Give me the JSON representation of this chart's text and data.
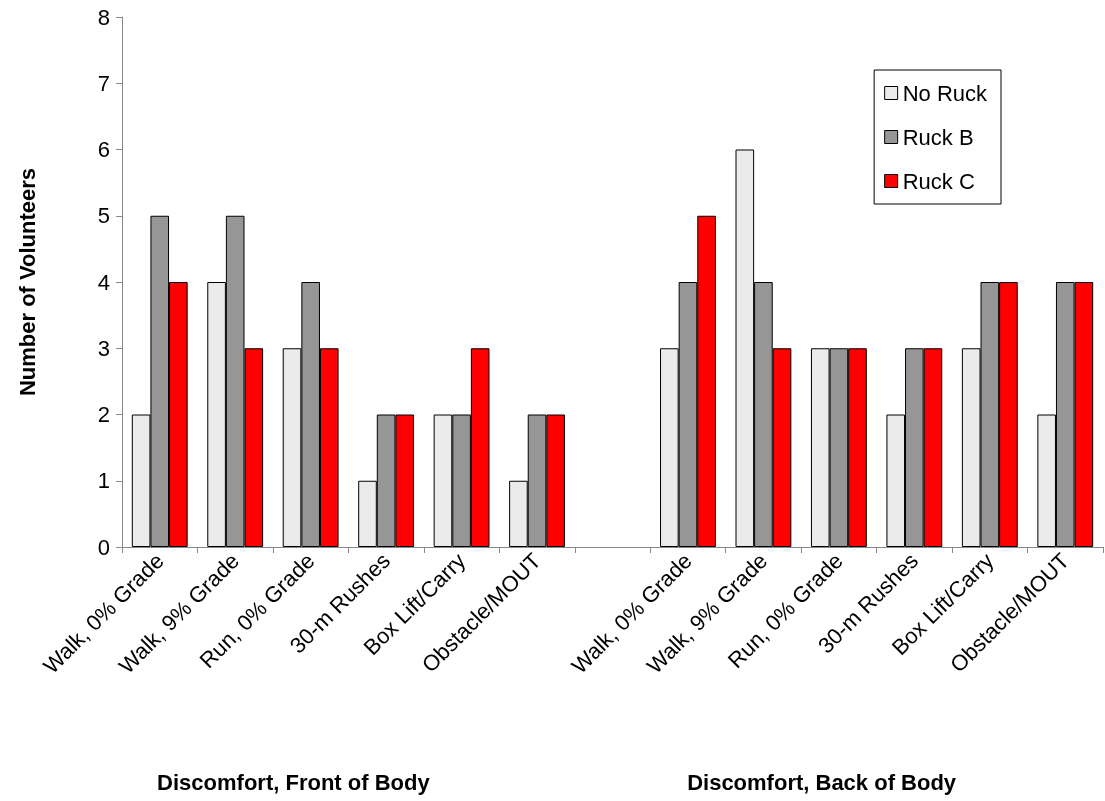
{
  "chart_data": {
    "type": "bar",
    "ylabel": "Number of Volunteers",
    "categories": [
      "Walk, 0% Grade",
      "Walk, 9% Grade",
      "Run, 0% Grade",
      "30-m Rushes",
      "Box Lift/Carry",
      "Obstacle/MOUT",
      null,
      "Walk, 0% Grade",
      "Walk, 9% Grade",
      "Run, 0% Grade",
      "30-m Rushes",
      "Box Lift/Carry",
      "Obstacle/MOUT"
    ],
    "series": [
      {
        "name": "No Ruck",
        "color": "#ebebeb",
        "values": [
          2,
          4,
          3,
          1,
          2,
          1,
          null,
          3,
          6,
          3,
          2,
          3,
          2
        ]
      },
      {
        "name": "Ruck B",
        "color": "#969696",
        "values": [
          5,
          5,
          4,
          2,
          2,
          2,
          null,
          4,
          4,
          3,
          3,
          4,
          4
        ]
      },
      {
        "name": "Ruck C",
        "color": "#ff0000",
        "values": [
          4,
          3,
          3,
          2,
          3,
          2,
          null,
          5,
          3,
          3,
          3,
          4,
          4
        ]
      }
    ],
    "annotations": [
      "Discomfort, Front of Body",
      "Discomfort, Back of Body"
    ],
    "ylim": [
      0,
      8
    ],
    "yticks": [
      0,
      1,
      2,
      3,
      4,
      5,
      6,
      7,
      8
    ],
    "grid": false,
    "legend": "top right"
  }
}
